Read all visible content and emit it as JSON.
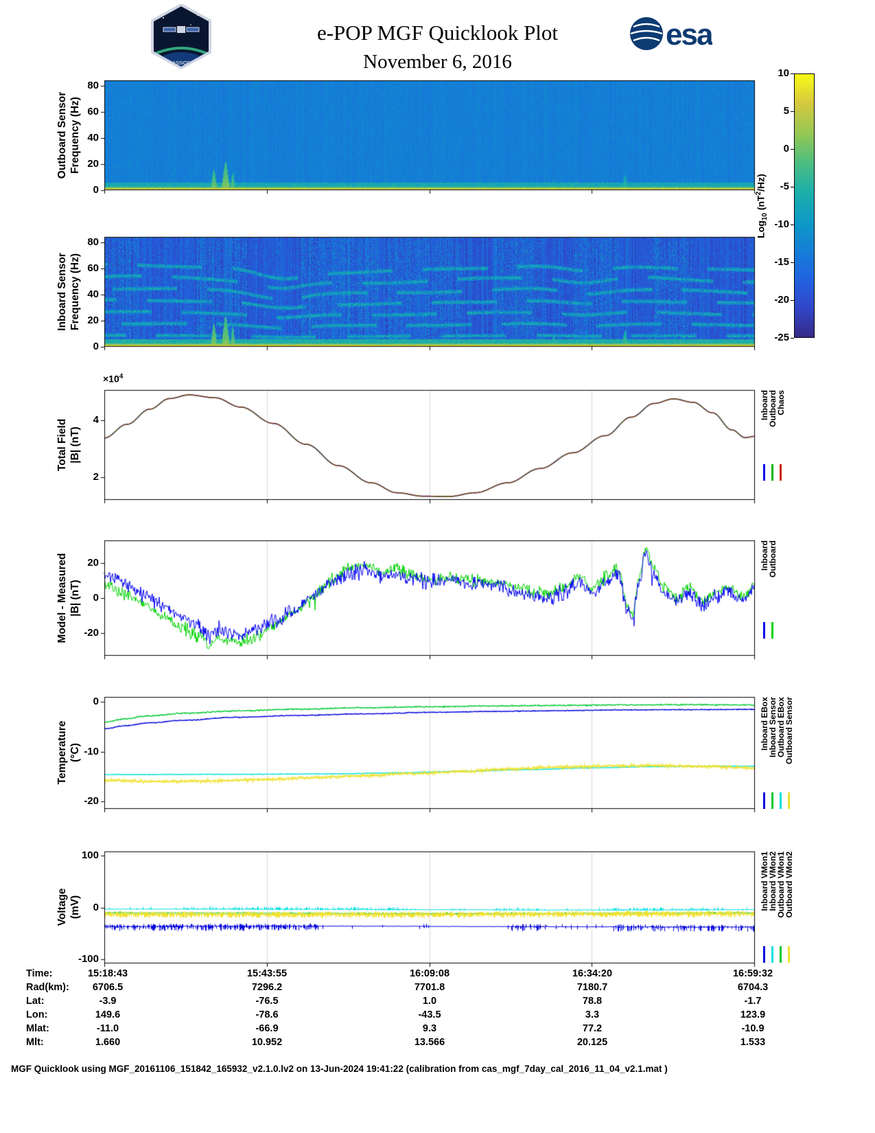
{
  "header": {
    "title_line1": "e-POP MGF Quicklook Plot",
    "title_line2": "November 6, 2016",
    "esa_logo_text": "esa",
    "cassiope_text": "CASSIOPE"
  },
  "colorbar": {
    "label_prefix": "Log",
    "label_sub": "10",
    "label_mid": " (nT",
    "label_sup": "2",
    "label_suffix": "/Hz)",
    "range": [
      -25,
      10
    ],
    "ticks": [
      10,
      5,
      0,
      -5,
      -10,
      -15,
      -20,
      -25
    ],
    "colormap": [
      "#352a87",
      "#3146c8",
      "#2163e0",
      "#1480d6",
      "#0d9bc4",
      "#1db0a9",
      "#4fbe7f",
      "#97c852",
      "#d5c83f",
      "#f9fb15"
    ]
  },
  "time_axis": {
    "tick_labels": [
      "15:18:43",
      "15:43:55",
      "16:09:08",
      "16:34:20",
      "16:59:32"
    ]
  },
  "chart_data": [
    {
      "id": "outboard_spectrogram",
      "type": "heatmap",
      "ylabel": [
        "Outboard Sensor",
        "Frequency (Hz)"
      ],
      "ylim": [
        0,
        84
      ],
      "yticks": [
        0,
        20,
        40,
        60,
        80
      ],
      "background_level_log10": -13.5,
      "noise_amp": 1.2,
      "column_variation": 0.7,
      "speckle": {
        "probability": 0.05,
        "active_probability": 0.12,
        "boost": 5
      },
      "bottom_band": {
        "freq_hz": 1.8,
        "level_log10": 5.5,
        "fuzz_freq_hz": 6,
        "fuzz_level": -7
      },
      "events": [
        {
          "t": 0.168,
          "fmax_hz": 16,
          "level": 1,
          "width": 0.004
        },
        {
          "t": 0.186,
          "fmax_hz": 22,
          "level": 2,
          "width": 0.005
        },
        {
          "t": 0.197,
          "fmax_hz": 14,
          "level": 0,
          "width": 0.003
        },
        {
          "t": 0.625,
          "fmax_hz": 7,
          "level": -5,
          "width": 0.003
        },
        {
          "t": 0.69,
          "fmax_hz": 9,
          "level": -4,
          "width": 0.003
        },
        {
          "t": 0.8,
          "fmax_hz": 12,
          "level": -3,
          "width": 0.004
        }
      ]
    },
    {
      "id": "inboard_spectrogram",
      "type": "heatmap",
      "ylabel": [
        "Inboard Sensor",
        "Frequency (Hz)"
      ],
      "ylim": [
        0,
        84
      ],
      "yticks": [
        0,
        20,
        40,
        60,
        80
      ],
      "background_level_log10": -18.5,
      "noise_amp": 2.2,
      "column_variation": 2.2,
      "speckle": {
        "probability": 0.06,
        "active_probability": 0.35,
        "boost": 9
      },
      "active_regions": [
        [
          0.0,
          0.05
        ],
        [
          0.14,
          0.22
        ],
        [
          0.3,
          0.42
        ],
        [
          0.43,
          0.55
        ],
        [
          0.6,
          0.67
        ],
        [
          0.72,
          0.79
        ],
        [
          0.84,
          0.9
        ]
      ],
      "harmonics": {
        "spacing_hz": 8.6,
        "count": 7,
        "level_log10": -7
      },
      "wobbles": [
        {
          "t": 0.27,
          "depth": 0.11,
          "width": 0.05
        },
        {
          "t": 0.74,
          "depth": 0.09,
          "width": 0.05
        }
      ],
      "bottom_band": {
        "freq_hz": 1.8,
        "level_log10": 5.5,
        "fuzz_freq_hz": 6,
        "fuzz_level": -6
      },
      "events": [
        {
          "t": 0.168,
          "fmax_hz": 18,
          "level": 2,
          "width": 0.004
        },
        {
          "t": 0.186,
          "fmax_hz": 24,
          "level": 2,
          "width": 0.005
        },
        {
          "t": 0.197,
          "fmax_hz": 16,
          "level": 1,
          "width": 0.003
        },
        {
          "t": 0.69,
          "fmax_hz": 10,
          "level": -3,
          "width": 0.003
        },
        {
          "t": 0.8,
          "fmax_hz": 13,
          "level": -2,
          "width": 0.004
        }
      ]
    },
    {
      "id": "total_field",
      "type": "line",
      "ylabel": [
        "Total Field",
        "|B| (nT)"
      ],
      "scale_prefix": "×10",
      "scale_exp": "4",
      "ylim": [
        12000,
        50500
      ],
      "yticks": [
        20000,
        40000
      ],
      "ytick_labels": [
        "2",
        "4"
      ],
      "series": [
        {
          "name": "Inboard",
          "color": "#0000ee"
        },
        {
          "name": "Outboard",
          "color": "#00b400"
        },
        {
          "name": "Chaos",
          "color": "#cc2200"
        }
      ],
      "points_t": [
        0,
        0.035,
        0.07,
        0.1,
        0.13,
        0.17,
        0.21,
        0.26,
        0.31,
        0.36,
        0.41,
        0.45,
        0.49,
        0.53,
        0.57,
        0.62,
        0.67,
        0.72,
        0.77,
        0.81,
        0.845,
        0.875,
        0.905,
        0.935,
        0.965,
        0.985,
        1.0
      ],
      "points_nT": [
        33700,
        38500,
        43800,
        47500,
        48800,
        47800,
        44500,
        38800,
        31500,
        24000,
        18000,
        14500,
        13300,
        13200,
        14500,
        18000,
        23000,
        28500,
        34500,
        41000,
        45800,
        47400,
        46200,
        42500,
        36500,
        33800,
        34300
      ]
    },
    {
      "id": "model_minus_measured",
      "type": "line",
      "ylabel": [
        "Model - Measured",
        "|B| (nT)"
      ],
      "ylim": [
        -33,
        33
      ],
      "yticks": [
        20,
        0,
        -20
      ],
      "series": [
        {
          "name": "Inboard",
          "color": "#0000ee",
          "noise_amp": 3.2
        },
        {
          "name": "Outboard",
          "color": "#00d200",
          "noise_amp": 2.4
        }
      ],
      "base_t": [
        0,
        0.03,
        0.06,
        0.09,
        0.12,
        0.15,
        0.16,
        0.175,
        0.19,
        0.21,
        0.235,
        0.26,
        0.29,
        0.32,
        0.35,
        0.38,
        0.405,
        0.425,
        0.45,
        0.47,
        0.5,
        0.53,
        0.56,
        0.6,
        0.63,
        0.66,
        0.685,
        0.71,
        0.73,
        0.75,
        0.775,
        0.79,
        0.803,
        0.812,
        0.822,
        0.832,
        0.845,
        0.86,
        0.88,
        0.9,
        0.92,
        0.94,
        0.96,
        0.98,
        1.0
      ],
      "base_nT": [
        13,
        9,
        3,
        -4,
        -11,
        -17,
        -22,
        -18,
        -20,
        -21,
        -18,
        -14,
        -8,
        1,
        9,
        15,
        16,
        12,
        14,
        11,
        9,
        10,
        8,
        7,
        4,
        1,
        0,
        4,
        10,
        3,
        10,
        13,
        -6,
        -13,
        8,
        26,
        14,
        3,
        -2,
        3,
        -4,
        1,
        4,
        -1,
        6
      ],
      "outboard_offset_t": [
        0,
        0.12,
        0.22,
        0.3,
        0.38,
        0.55,
        0.75,
        0.85,
        1.0
      ],
      "outboard_offset_nT": [
        -6,
        -6,
        -4,
        -1,
        3,
        2,
        3,
        3,
        2
      ]
    },
    {
      "id": "temperature",
      "type": "line",
      "ylabel": [
        "Temperature",
        "(°C)"
      ],
      "ylim": [
        -21.5,
        1
      ],
      "yticks": [
        0,
        -10,
        -20
      ],
      "series": [
        {
          "name": "Inboard EBox",
          "color": "#0000dc",
          "noise": 0.1,
          "t": [
            0,
            0.03,
            0.07,
            0.12,
            0.2,
            0.3,
            0.4,
            0.5,
            0.6,
            0.7,
            0.8,
            0.9,
            1
          ],
          "v": [
            -5.4,
            -4.8,
            -4.2,
            -3.7,
            -3.1,
            -2.7,
            -2.4,
            -2.1,
            -1.9,
            -1.75,
            -1.6,
            -1.55,
            -1.5
          ]
        },
        {
          "name": "Inboard Sensor",
          "color": "#00c832",
          "noise": 0.15,
          "t": [
            0,
            0.03,
            0.07,
            0.12,
            0.2,
            0.3,
            0.4,
            0.5,
            0.6,
            0.7,
            0.8,
            0.9,
            1
          ],
          "v": [
            -4.1,
            -3.4,
            -2.8,
            -2.3,
            -1.8,
            -1.45,
            -1.15,
            -0.95,
            -0.8,
            -0.7,
            -0.6,
            -0.55,
            -0.6
          ]
        },
        {
          "name": "Outboard EBox",
          "color": "#00e1e1",
          "noise": 0.08,
          "t": [
            0,
            0.2,
            0.35,
            0.45,
            0.55,
            0.65,
            0.75,
            0.85,
            1
          ],
          "v": [
            -14.6,
            -14.55,
            -14.45,
            -14.25,
            -13.95,
            -13.6,
            -13.25,
            -13.0,
            -12.9
          ]
        },
        {
          "name": "Outboard Sensor",
          "color": "#f0e130",
          "noise": 0.18,
          "fuzz": 0.5,
          "t": [
            0,
            0.08,
            0.15,
            0.25,
            0.32,
            0.4,
            0.47,
            0.55,
            0.62,
            0.7,
            0.78,
            0.85,
            0.92,
            1
          ],
          "v": [
            -15.8,
            -16.0,
            -15.9,
            -15.6,
            -15.2,
            -14.8,
            -14.4,
            -14.0,
            -13.5,
            -13.1,
            -12.85,
            -12.8,
            -12.95,
            -13.3
          ]
        }
      ]
    },
    {
      "id": "voltage",
      "type": "line",
      "ylabel": [
        "Voltage",
        "(mV)"
      ],
      "ylim": [
        -108,
        108
      ],
      "yticks": [
        100,
        0,
        -100
      ],
      "series": [
        {
          "name": "Inboard VMon1",
          "color": "#0000dc",
          "base_mV": -37,
          "spike_up_mV": 5,
          "spike_down_mV": 9,
          "density": [
            [
              0,
              0.33,
              0.65
            ],
            [
              0.33,
              0.62,
              0.05
            ],
            [
              0.62,
              0.68,
              0.45
            ],
            [
              0.68,
              0.78,
              0.07
            ],
            [
              0.78,
              1.0,
              0.4
            ]
          ]
        },
        {
          "name": "Inboard VMon2",
          "color": "#00e1e1",
          "base_mV": -4,
          "spike_up_mV": 5,
          "spike_down_mV": 2,
          "density": [
            [
              0,
              0.12,
              0.04
            ],
            [
              0.12,
              0.46,
              0.45
            ],
            [
              0.46,
              0.6,
              0.08
            ],
            [
              0.6,
              0.67,
              0.35
            ],
            [
              0.67,
              0.77,
              0.08
            ],
            [
              0.77,
              0.96,
              0.45
            ],
            [
              0.96,
              1,
              0.05
            ]
          ]
        },
        {
          "name": "Outboard VMon1",
          "color": "#00c832",
          "base_mV": -11,
          "spike_up_mV": 3,
          "spike_down_mV": 3,
          "density": [
            [
              0,
              1,
              0.12
            ]
          ]
        },
        {
          "name": "Outboard VMon2",
          "color": "#f0e130",
          "base_mV": -13,
          "spike_up_mV": 6,
          "spike_down_mV": 7,
          "density": [
            [
              0,
              1,
              0.95
            ]
          ]
        }
      ]
    }
  ],
  "bottom_table": {
    "rows": [
      {
        "label": "Time:",
        "values": [
          "15:18:43",
          "15:43:55",
          "16:09:08",
          "16:34:20",
          "16:59:32"
        ]
      },
      {
        "label": "Rad(km):",
        "values": [
          "6706.5",
          "7296.2",
          "7701.8",
          "7180.7",
          "6704.3"
        ]
      },
      {
        "label": "Lat:",
        "values": [
          "-3.9",
          "-76.5",
          "1.0",
          "78.8",
          "-1.7"
        ]
      },
      {
        "label": "Lon:",
        "values": [
          "149.6",
          "-78.6",
          "-43.5",
          "3.3",
          "123.9"
        ]
      },
      {
        "label": "Mlat:",
        "values": [
          "-11.0",
          "-66.9",
          "9.3",
          "77.2",
          "-10.9"
        ]
      },
      {
        "label": "Mlt:",
        "values": [
          "1.660",
          "10.952",
          "13.566",
          "20.125",
          "1.533"
        ]
      }
    ]
  },
  "footer": "MGF Quicklook using MGF_20161106_151842_165932_v2.1.0.lv2 on 13-Jun-2024 19:41:22 (calibration from cas_mgf_7day_cal_2016_11_04_v2.1.mat )"
}
